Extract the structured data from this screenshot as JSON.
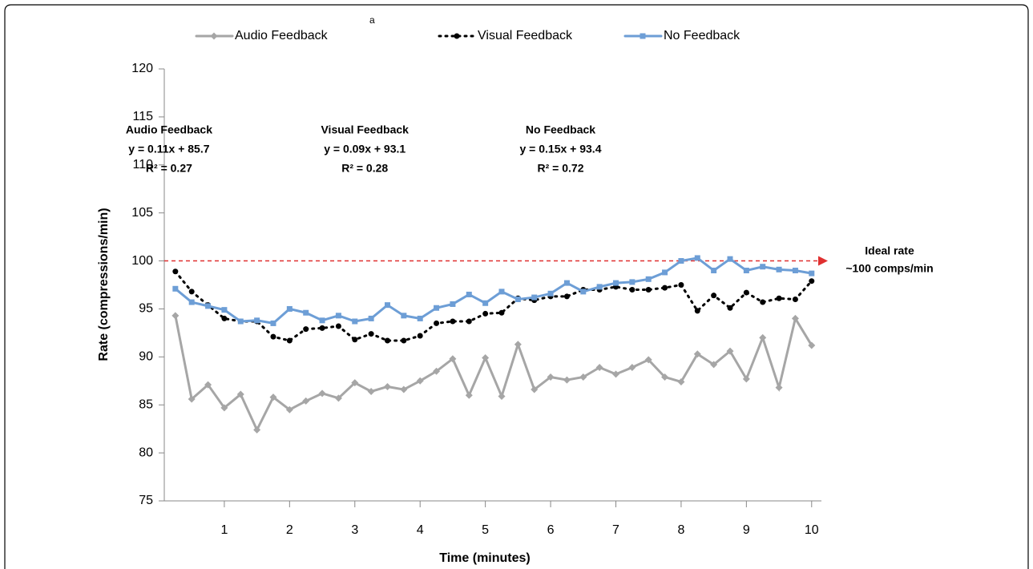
{
  "chart_data": {
    "type": "line",
    "note_label": "a",
    "xlabel": "Time (minutes)",
    "ylabel": "Rate (compressions/min)",
    "x": [
      0.25,
      0.5,
      0.75,
      1,
      1.25,
      1.5,
      1.75,
      2,
      2.25,
      2.5,
      2.75,
      3,
      3.25,
      3.5,
      3.75,
      4,
      4.25,
      4.5,
      4.75,
      5,
      5.25,
      5.5,
      5.75,
      6,
      6.25,
      6.5,
      6.75,
      7,
      7.25,
      7.5,
      7.75,
      8,
      8.25,
      8.5,
      8.75,
      9,
      9.25,
      9.5,
      9.75,
      10
    ],
    "series": [
      {
        "name": "Audio Feedback",
        "color": "#a6a6a6",
        "marker": "diamond",
        "dash": "solid",
        "values": [
          94.3,
          85.6,
          87.1,
          84.7,
          86.1,
          82.4,
          85.8,
          84.5,
          85.4,
          86.2,
          85.7,
          87.3,
          86.4,
          86.9,
          86.6,
          87.5,
          88.5,
          89.8,
          86.0,
          89.9,
          85.9,
          91.3,
          86.6,
          87.9,
          87.6,
          87.9,
          88.9,
          88.2,
          88.9,
          89.7,
          87.9,
          87.4,
          90.3,
          89.2,
          90.6,
          87.7,
          92.0,
          86.8,
          94.0,
          91.2
        ]
      },
      {
        "name": "Visual Feedback",
        "color": "#000000",
        "marker": "circle",
        "dash": "dotted",
        "values": [
          98.9,
          96.8,
          95.4,
          94.0,
          93.7,
          93.7,
          92.1,
          91.7,
          92.9,
          93.0,
          93.2,
          91.8,
          92.4,
          91.7,
          91.7,
          92.2,
          93.5,
          93.7,
          93.7,
          94.5,
          94.6,
          96.1,
          95.9,
          96.3,
          96.3,
          97.0,
          97.0,
          97.3,
          97.0,
          97.0,
          97.2,
          97.5,
          94.8,
          96.4,
          95.1,
          96.7,
          95.7,
          96.1,
          96.0,
          97.9
        ]
      },
      {
        "name": "No Feedback",
        "color": "#6d9ed6",
        "marker": "square",
        "dash": "solid",
        "values": [
          97.1,
          95.7,
          95.3,
          94.9,
          93.7,
          93.8,
          93.5,
          95.0,
          94.6,
          93.8,
          94.3,
          93.7,
          94.0,
          95.4,
          94.3,
          94.0,
          95.1,
          95.5,
          96.5,
          95.6,
          96.8,
          96.0,
          96.2,
          96.6,
          97.7,
          96.8,
          97.3,
          97.7,
          97.8,
          98.1,
          98.8,
          100.0,
          100.3,
          99.0,
          100.2,
          99.0,
          99.4,
          99.1,
          99.0,
          98.7
        ]
      }
    ],
    "xlim": [
      0.08,
      10.15
    ],
    "xticks": [
      1,
      2,
      3,
      4,
      5,
      6,
      7,
      8,
      9,
      10
    ],
    "ylim": [
      75,
      120
    ],
    "yticks": [
      75,
      80,
      85,
      90,
      95,
      100,
      105,
      110,
      115,
      120
    ],
    "legend": "top",
    "reference_line": {
      "value": 100,
      "color": "#e03030",
      "label": [
        "Ideal rate",
        "~100 comps/min"
      ]
    },
    "annotations": [
      {
        "x": 3.1,
        "lines": [
          "Audio Feedback",
          "y = 0.11x + 85.7",
          "R² = 0.27"
        ]
      },
      {
        "x": 6.1,
        "lines": [
          "Visual Feedback",
          "y = 0.09x + 93.1",
          "R² = 0.28"
        ]
      },
      {
        "x": 9.1,
        "lines": [
          "No Feedback",
          "y = 0.15x + 93.4",
          "R² = 0.72"
        ]
      }
    ]
  }
}
